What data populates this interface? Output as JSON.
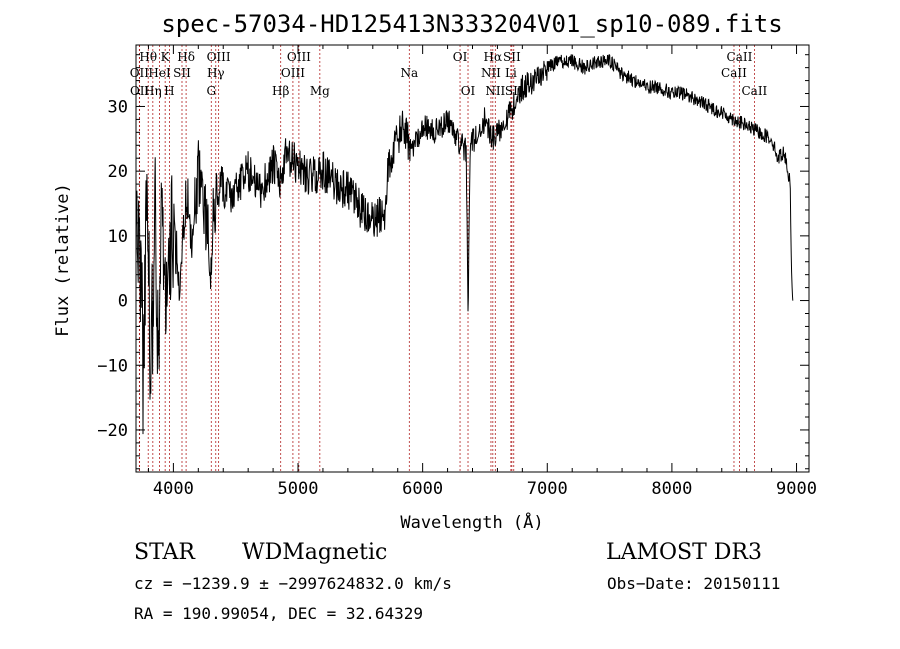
{
  "chart_data": {
    "type": "line",
    "title": "spec-57034-HD125413N333204V01_sp10-089.fits",
    "xlabel": "Wavelength (Å)",
    "ylabel": "Flux (relative)",
    "xlim": [
      3700,
      9100
    ],
    "ylim": [
      -26.5,
      39.5
    ],
    "xticks": [
      4000,
      5000,
      6000,
      7000,
      8000,
      9000
    ],
    "xtick_labels": [
      "4000",
      "5000",
      "6000",
      "7000",
      "8000",
      "9000"
    ],
    "yticks": [
      -20,
      -10,
      0,
      10,
      20,
      30
    ],
    "ytick_labels": [
      "−20",
      "−10",
      "0",
      "10",
      "20",
      "30"
    ],
    "grid": false,
    "series": [
      {
        "name": "flux",
        "anchors": [
          [
            3700,
            6
          ],
          [
            3730,
            12
          ],
          [
            3760,
            -14
          ],
          [
            3790,
            24
          ],
          [
            3820,
            -16
          ],
          [
            3850,
            18
          ],
          [
            3880,
            -8
          ],
          [
            3910,
            14
          ],
          [
            3950,
            -2
          ],
          [
            4000,
            12
          ],
          [
            4050,
            4
          ],
          [
            4100,
            16
          ],
          [
            4150,
            10
          ],
          [
            4200,
            20
          ],
          [
            4250,
            14
          ],
          [
            4280,
            10
          ],
          [
            4300,
            2
          ],
          [
            4320,
            14
          ],
          [
            4380,
            18
          ],
          [
            4450,
            16
          ],
          [
            4500,
            17
          ],
          [
            4600,
            20
          ],
          [
            4700,
            17
          ],
          [
            4800,
            21
          ],
          [
            4860,
            18
          ],
          [
            4900,
            22
          ],
          [
            5000,
            21
          ],
          [
            5100,
            19
          ],
          [
            5200,
            20
          ],
          [
            5300,
            18
          ],
          [
            5400,
            17
          ],
          [
            5500,
            14
          ],
          [
            5600,
            12
          ],
          [
            5700,
            14
          ],
          [
            5720,
            20
          ],
          [
            5780,
            24
          ],
          [
            5850,
            27
          ],
          [
            5900,
            23
          ],
          [
            6000,
            27
          ],
          [
            6100,
            26
          ],
          [
            6200,
            28
          ],
          [
            6280,
            25
          ],
          [
            6350,
            23
          ],
          [
            6365,
            -3
          ],
          [
            6380,
            24
          ],
          [
            6450,
            26
          ],
          [
            6500,
            28
          ],
          [
            6560,
            25
          ],
          [
            6600,
            26
          ],
          [
            6700,
            29
          ],
          [
            6800,
            33
          ],
          [
            6900,
            34
          ],
          [
            7000,
            36
          ],
          [
            7100,
            37
          ],
          [
            7200,
            37
          ],
          [
            7300,
            36
          ],
          [
            7400,
            37
          ],
          [
            7500,
            37
          ],
          [
            7600,
            35
          ],
          [
            7700,
            34
          ],
          [
            7800,
            33
          ],
          [
            7900,
            33
          ],
          [
            8000,
            32
          ],
          [
            8100,
            32
          ],
          [
            8200,
            31
          ],
          [
            8300,
            30
          ],
          [
            8400,
            29
          ],
          [
            8500,
            28
          ],
          [
            8600,
            27
          ],
          [
            8700,
            26
          ],
          [
            8800,
            25
          ],
          [
            8850,
            22
          ],
          [
            8900,
            23
          ],
          [
            8950,
            18
          ],
          [
            8960,
            4
          ],
          [
            8970,
            0
          ]
        ],
        "noise_segments": [
          {
            "from": 3700,
            "to": 4000,
            "amplitude": 11
          },
          {
            "from": 4000,
            "to": 4350,
            "amplitude": 5
          },
          {
            "from": 4350,
            "to": 5900,
            "amplitude": 3.2
          },
          {
            "from": 5900,
            "to": 7000,
            "amplitude": 2
          },
          {
            "from": 7000,
            "to": 8970,
            "amplitude": 1.1
          }
        ]
      }
    ],
    "spectral_lines": [
      {
        "label": "Hθ",
        "wavelength": 3798,
        "row": 1
      },
      {
        "label": "OII",
        "wavelength": 3727,
        "row": 2
      },
      {
        "label": "OII",
        "wavelength": 3729,
        "row": 3
      },
      {
        "label": "Hη",
        "wavelength": 3835,
        "row": 3
      },
      {
        "label": "HeI",
        "wavelength": 3889,
        "row": 2
      },
      {
        "label": "K",
        "wavelength": 3934,
        "row": 1
      },
      {
        "label": "H",
        "wavelength": 3968,
        "row": 3
      },
      {
        "label": "SII",
        "wavelength": 4069,
        "row": 2
      },
      {
        "label": "Hδ",
        "wavelength": 4102,
        "row": 1
      },
      {
        "label": "G",
        "wavelength": 4304,
        "row": 3
      },
      {
        "label": "Hγ",
        "wavelength": 4340,
        "row": 2
      },
      {
        "label": "OIII",
        "wavelength": 4363,
        "row": 1
      },
      {
        "label": "Hβ",
        "wavelength": 4861,
        "row": 3
      },
      {
        "label": "OIII",
        "wavelength": 4959,
        "row": 2
      },
      {
        "label": "OIII",
        "wavelength": 5007,
        "row": 1
      },
      {
        "label": "Mg",
        "wavelength": 5175,
        "row": 3
      },
      {
        "label": "Na",
        "wavelength": 5893,
        "row": 2
      },
      {
        "label": "OI",
        "wavelength": 6300,
        "row": 1
      },
      {
        "label": "OI",
        "wavelength": 6364,
        "row": 3
      },
      {
        "label": "NII",
        "wavelength": 6548,
        "row": 2
      },
      {
        "label": "Hα",
        "wavelength": 6563,
        "row": 1
      },
      {
        "label": "NII",
        "wavelength": 6583,
        "row": 3
      },
      {
        "label": "SII",
        "wavelength": 6716,
        "row": 1
      },
      {
        "label": "Li",
        "wavelength": 6708,
        "row": 2
      },
      {
        "label": "SII",
        "wavelength": 6731,
        "row": 3
      },
      {
        "label": "CaII",
        "wavelength": 8498,
        "row": 2
      },
      {
        "label": "CaII",
        "wavelength": 8542,
        "row": 1
      },
      {
        "label": "CaII",
        "wavelength": 8662,
        "row": 3
      }
    ]
  },
  "info": {
    "class": "STAR",
    "subclass": "WDMagnetic",
    "survey": "LAMOST DR3",
    "redshift": "cz = −1239.9 ± −2997624832.0 km/s",
    "obs_date": "Obs−Date: 20150111",
    "coords": "RA = 190.99054, DEC =  32.64329"
  }
}
